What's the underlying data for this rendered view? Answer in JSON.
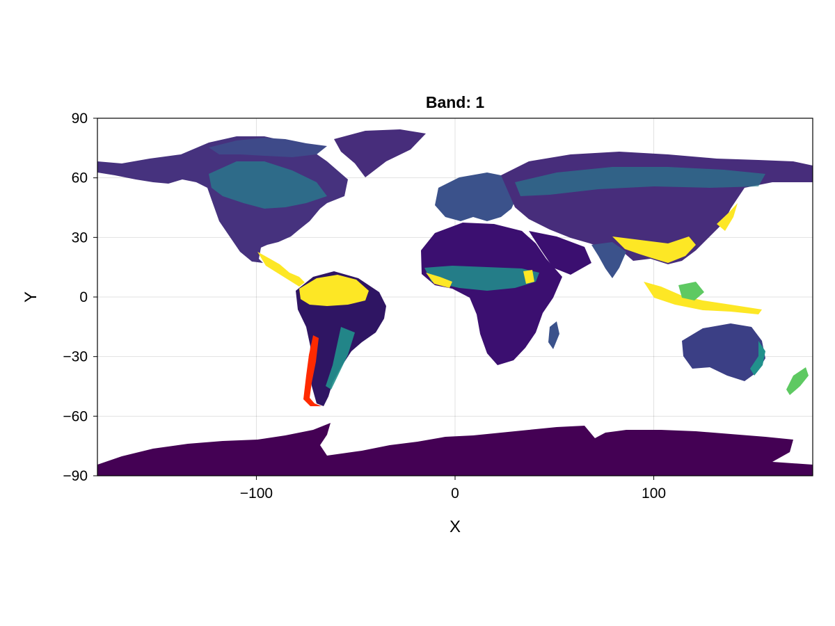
{
  "chart_data": {
    "type": "heatmap",
    "title": "Band: 1",
    "xlabel": "X",
    "ylabel": "Y",
    "xlim": [
      -180,
      180
    ],
    "ylim": [
      -90,
      90
    ],
    "xticks": [
      -100,
      0,
      100
    ],
    "xtick_labels": [
      "−100",
      "0",
      "100"
    ],
    "yticks": [
      90,
      60,
      30,
      0,
      -30,
      -60,
      -90
    ],
    "ytick_labels": [
      "90",
      "60",
      "30",
      "0",
      "−30",
      "−60",
      "−90"
    ],
    "grid": true,
    "colormap": "viridis",
    "colors": {
      "low": "#440154",
      "mid_low": "#3b528b",
      "mid": "#21918c",
      "mid_high": "#5ec962",
      "high": "#fde725",
      "out_of_range": "#ff0000"
    }
  }
}
